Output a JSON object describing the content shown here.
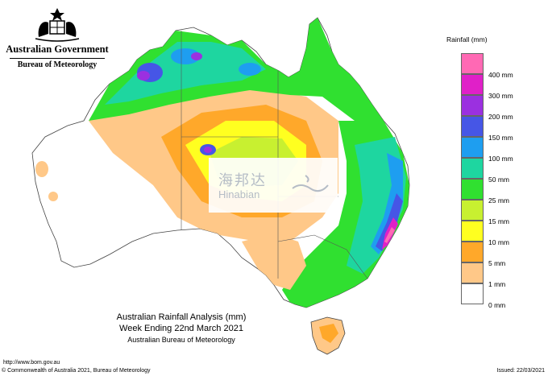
{
  "header": {
    "government": "Australian Government",
    "bureau": "Bureau of Meteorology"
  },
  "legend": {
    "title": "Rainfall (mm)",
    "items": [
      {
        "label": "400 mm",
        "color": "#ff69b4"
      },
      {
        "label": "300 mm",
        "color": "#e020c8"
      },
      {
        "label": "200 mm",
        "color": "#9b30e0"
      },
      {
        "label": "150 mm",
        "color": "#4656e6"
      },
      {
        "label": "100 mm",
        "color": "#1e9ef0"
      },
      {
        "label": "50 mm",
        "color": "#1ed6a0"
      },
      {
        "label": "25 mm",
        "color": "#30e030"
      },
      {
        "label": "15 mm",
        "color": "#c8f030"
      },
      {
        "label": "10 mm",
        "color": "#ffff20"
      },
      {
        "label": "5 mm",
        "color": "#ffa82a"
      },
      {
        "label": "1 mm",
        "color": "#ffc888"
      },
      {
        "label": "0 mm",
        "color": "#ffffff"
      }
    ]
  },
  "titles": {
    "line1": "Australian Rainfall Analysis (mm)",
    "line2": "Week Ending 22nd March 2021",
    "line3": "Australian Bureau of Meteorology"
  },
  "footer": {
    "url": "http://www.bom.gov.au",
    "copyright": "© Commonwealth of Australia 2021, Bureau of Meteorology",
    "issued": "Issued: 22/03/2021"
  },
  "watermark": {
    "chinese": "海邦达",
    "english": "Hinabian"
  }
}
